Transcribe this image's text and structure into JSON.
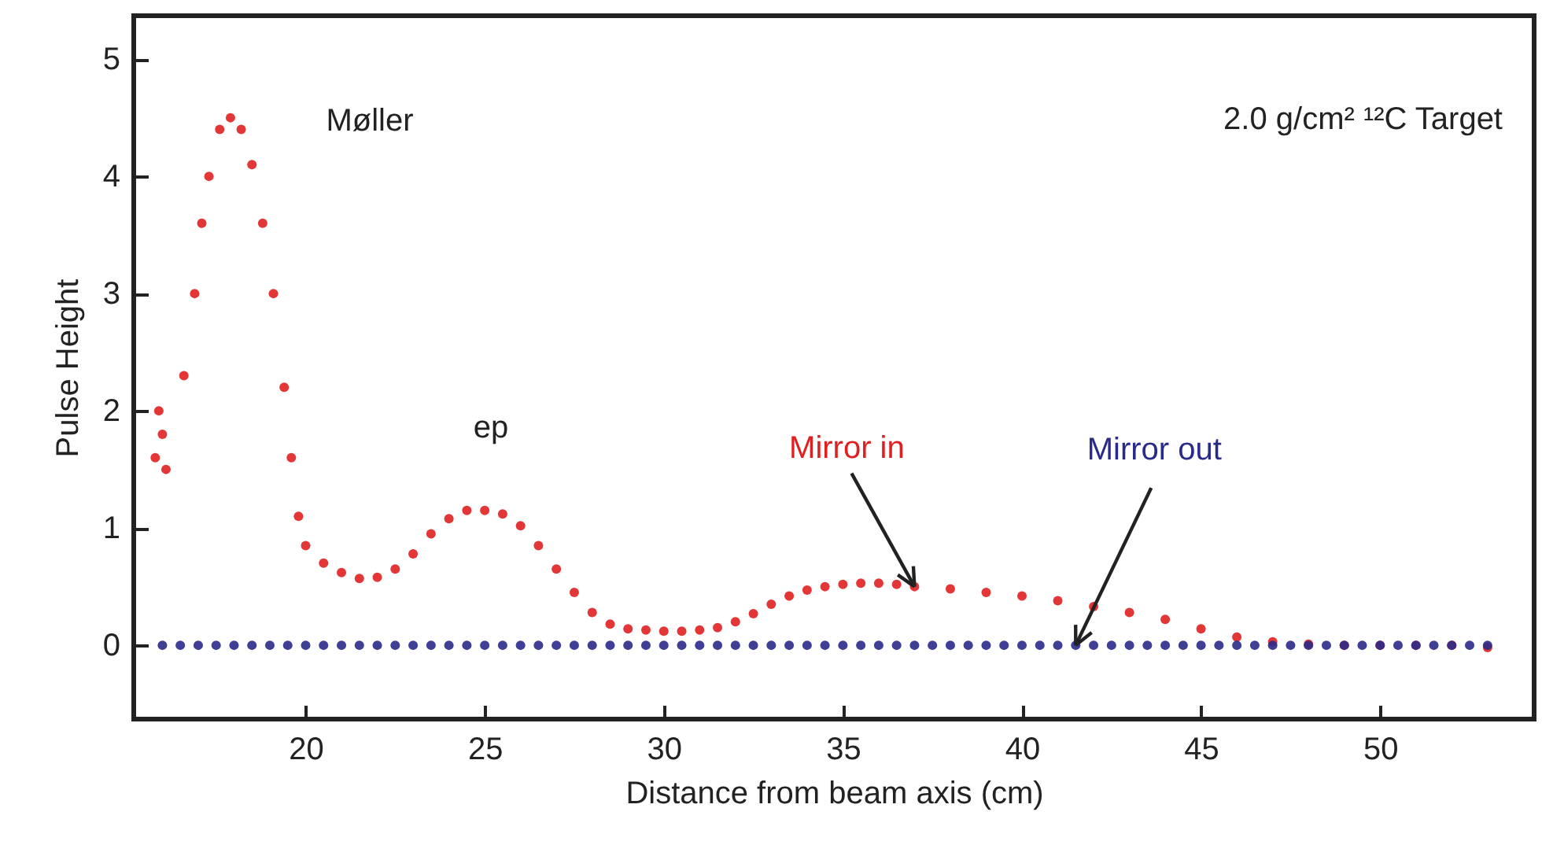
{
  "chart_data": {
    "type": "scatter",
    "xlabel": "Distance from beam axis (cm)",
    "ylabel": "Pulse Height",
    "annotations": [
      "Møller",
      "ep",
      "2.0 g/cm² ¹²C Target"
    ],
    "xlim": [
      15.2,
      54.3
    ],
    "ylim": [
      -0.63,
      5.37
    ],
    "xticks": [
      20,
      25,
      30,
      35,
      40,
      45,
      50
    ],
    "yticks": [
      0,
      1,
      2,
      3,
      4,
      5
    ],
    "grid": false,
    "legend": false,
    "marker": "circle",
    "series": [
      {
        "name": "Mirror in",
        "color": "#e02020",
        "x": [
          15.8,
          15.9,
          16.0,
          16.1,
          16.6,
          16.9,
          17.1,
          17.3,
          17.6,
          17.9,
          18.2,
          18.5,
          18.8,
          19.1,
          19.4,
          19.6,
          19.8,
          20.0,
          20.5,
          21.0,
          21.5,
          22.0,
          22.5,
          23.0,
          23.5,
          24.0,
          24.5,
          25.0,
          25.5,
          26.0,
          26.5,
          27.0,
          27.5,
          28.0,
          28.5,
          29.0,
          29.5,
          30.0,
          30.5,
          31.0,
          31.5,
          32.0,
          32.5,
          33.0,
          33.5,
          34.0,
          34.5,
          35.0,
          35.5,
          36.0,
          36.5,
          37.0,
          38,
          39,
          40,
          41,
          42,
          43,
          44,
          45,
          46,
          47,
          48,
          49,
          50,
          51,
          52,
          53
        ],
        "values": [
          1.6,
          2.0,
          1.8,
          1.5,
          2.3,
          3.0,
          3.6,
          4.0,
          4.4,
          4.5,
          4.4,
          4.1,
          3.6,
          3.0,
          2.2,
          1.6,
          1.1,
          0.85,
          0.7,
          0.62,
          0.57,
          0.58,
          0.65,
          0.78,
          0.95,
          1.08,
          1.15,
          1.15,
          1.12,
          1.02,
          0.85,
          0.65,
          0.45,
          0.28,
          0.18,
          0.14,
          0.13,
          0.12,
          0.12,
          0.13,
          0.15,
          0.2,
          0.27,
          0.35,
          0.42,
          0.47,
          0.5,
          0.52,
          0.53,
          0.53,
          0.52,
          0.5,
          0.48,
          0.45,
          0.42,
          0.38,
          0.33,
          0.28,
          0.22,
          0.14,
          0.07,
          0.03,
          0.01,
          0,
          0,
          0,
          0,
          -0.02
        ]
      },
      {
        "name": "Mirror out",
        "color": "#2a2a8a",
        "x": [
          16,
          16.5,
          17,
          17.5,
          18,
          18.5,
          19,
          19.5,
          20,
          20.5,
          21,
          21.5,
          22,
          22.5,
          23,
          23.5,
          24,
          24.5,
          25,
          25.5,
          26,
          26.5,
          27,
          27.5,
          28,
          28.5,
          29,
          29.5,
          30,
          30.5,
          31,
          31.5,
          32,
          32.5,
          33,
          33.5,
          34,
          34.5,
          35,
          35.5,
          36,
          36.5,
          37,
          37.5,
          38,
          38.5,
          39,
          39.5,
          40,
          40.5,
          41,
          41.5,
          42,
          42.5,
          43,
          43.5,
          44,
          44.5,
          45,
          45.5,
          46,
          46.5,
          47,
          47.5,
          48,
          48.5,
          49,
          49.5,
          50,
          50.5,
          51,
          51.5,
          52,
          52.5,
          53
        ],
        "values": [
          0,
          0,
          0,
          0,
          0,
          0,
          0,
          0,
          0,
          0,
          0,
          0,
          0,
          0,
          0,
          0,
          0,
          0,
          0,
          0,
          0,
          0,
          0,
          0,
          0,
          0,
          0,
          0,
          0,
          0,
          0,
          0,
          0,
          0,
          0,
          0,
          0,
          0,
          0,
          0,
          0,
          0,
          0,
          0,
          0,
          0,
          0,
          0,
          0,
          0,
          0,
          0,
          0,
          0,
          0,
          0,
          0,
          0,
          0,
          0,
          0,
          0,
          0,
          0,
          0,
          0,
          0,
          0,
          0,
          0,
          0,
          0,
          0,
          0,
          0
        ]
      }
    ]
  }
}
